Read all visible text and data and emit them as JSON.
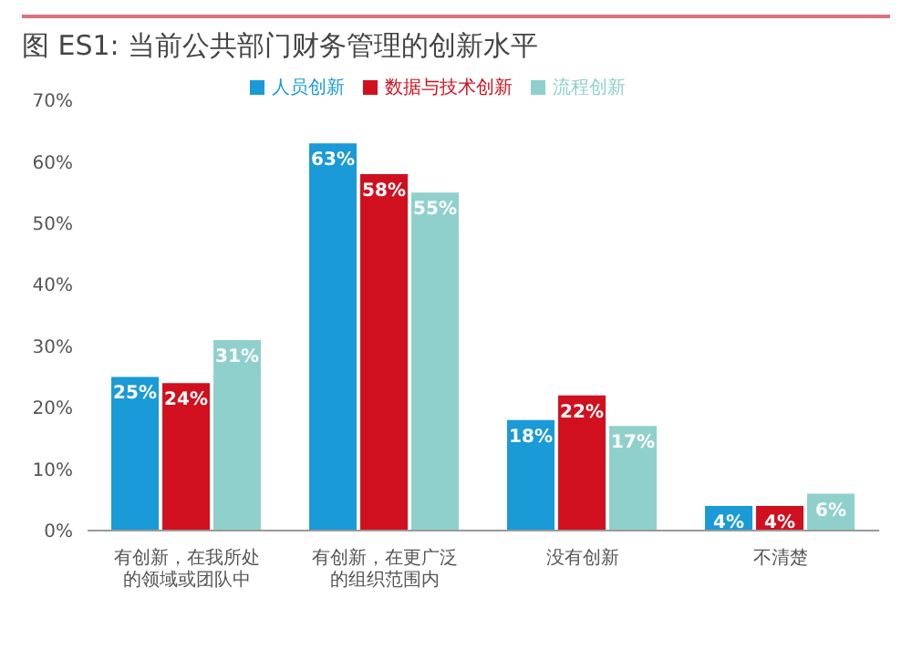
{
  "chart_data": {
    "type": "bar",
    "title": "图 ES1: 当前公共部门财务管理的创新水平",
    "categories": [
      "有创新，在我所处的领域或团队中",
      "有创新，在更广泛的组织范围内",
      "没有创新",
      "不清楚"
    ],
    "series": [
      {
        "name": "人员创新",
        "color": "#1a9ad6",
        "values": [
          25,
          63,
          18,
          4
        ],
        "value_labels": [
          "25%",
          "63%",
          "18%",
          "4%"
        ]
      },
      {
        "name": "数据与技术创新",
        "color": "#d0101e",
        "values": [
          24,
          58,
          22,
          4
        ],
        "value_labels": [
          "24%",
          "58%",
          "22%",
          "4%"
        ]
      },
      {
        "name": "流程创新",
        "color": "#8fd0cc",
        "values": [
          31,
          55,
          17,
          6
        ],
        "value_labels": [
          "31%",
          "55%",
          "17%",
          "6%"
        ]
      }
    ],
    "ylim": [
      0,
      70
    ],
    "yticks": [
      {
        "value": 0,
        "label": "0%"
      },
      {
        "value": 10,
        "label": "10%"
      },
      {
        "value": 20,
        "label": "20%"
      },
      {
        "value": 30,
        "label": "30%"
      },
      {
        "value": 40,
        "label": "40%"
      },
      {
        "value": 50,
        "label": "50%"
      },
      {
        "value": 60,
        "label": "60%"
      },
      {
        "value": 70,
        "label": "70%"
      }
    ],
    "grid": false,
    "legend": "top"
  }
}
